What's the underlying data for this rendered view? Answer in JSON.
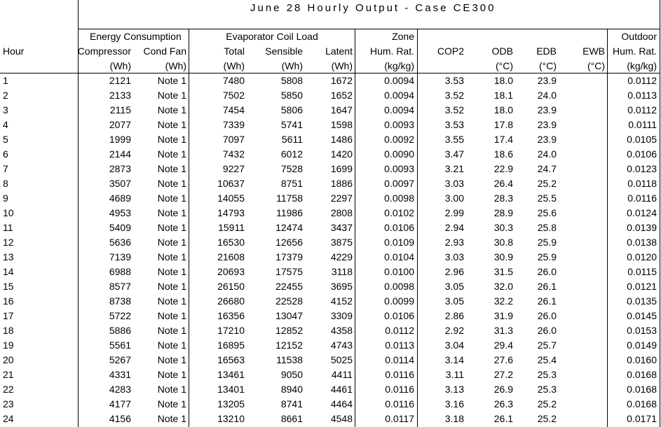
{
  "title": "June 28 Hourly Output - Case CE300",
  "group_headers": {
    "energy": "Energy Consumption",
    "evap": "Evaporator Coil Load",
    "zone": "Zone",
    "outdoor": "Outdoor"
  },
  "columns": [
    {
      "key": "hour",
      "name": "Hour",
      "unit": ""
    },
    {
      "key": "comp",
      "name": "Compressor",
      "unit": "(Wh)"
    },
    {
      "key": "fan",
      "name": "Cond Fan",
      "unit": "(Wh)"
    },
    {
      "key": "total",
      "name": "Total",
      "unit": "(Wh)"
    },
    {
      "key": "sens",
      "name": "Sensible",
      "unit": "(Wh)"
    },
    {
      "key": "lat",
      "name": "Latent",
      "unit": "(Wh)"
    },
    {
      "key": "zhr",
      "name": "Hum. Rat.",
      "unit": "(kg/kg)"
    },
    {
      "key": "cop",
      "name": "COP2",
      "unit": ""
    },
    {
      "key": "odb",
      "name": "ODB",
      "unit": "(°C)"
    },
    {
      "key": "edb",
      "name": "EDB",
      "unit": "(°C)"
    },
    {
      "key": "ewb",
      "name": "EWB",
      "unit": "(°C)"
    },
    {
      "key": "ohr",
      "name": "Hum. Rat.",
      "unit": "(kg/kg)"
    }
  ],
  "rows": [
    [
      "1",
      "2121",
      "Note 1",
      "7480",
      "5808",
      "1672",
      "0.0094",
      "3.53",
      "18.0",
      "23.9",
      "",
      "0.0112"
    ],
    [
      "2",
      "2133",
      "Note 1",
      "7502",
      "5850",
      "1652",
      "0.0094",
      "3.52",
      "18.1",
      "24.0",
      "",
      "0.0113"
    ],
    [
      "3",
      "2115",
      "Note 1",
      "7454",
      "5806",
      "1647",
      "0.0094",
      "3.52",
      "18.0",
      "23.9",
      "",
      "0.0112"
    ],
    [
      "4",
      "2077",
      "Note 1",
      "7339",
      "5741",
      "1598",
      "0.0093",
      "3.53",
      "17.8",
      "23.9",
      "",
      "0.0111"
    ],
    [
      "5",
      "1999",
      "Note 1",
      "7097",
      "5611",
      "1486",
      "0.0092",
      "3.55",
      "17.4",
      "23.9",
      "",
      "0.0105"
    ],
    [
      "6",
      "2144",
      "Note 1",
      "7432",
      "6012",
      "1420",
      "0.0090",
      "3.47",
      "18.6",
      "24.0",
      "",
      "0.0106"
    ],
    [
      "7",
      "2873",
      "Note 1",
      "9227",
      "7528",
      "1699",
      "0.0093",
      "3.21",
      "22.9",
      "24.7",
      "",
      "0.0123"
    ],
    [
      "8",
      "3507",
      "Note 1",
      "10637",
      "8751",
      "1886",
      "0.0097",
      "3.03",
      "26.4",
      "25.2",
      "",
      "0.0118"
    ],
    [
      "9",
      "4689",
      "Note 1",
      "14055",
      "11758",
      "2297",
      "0.0098",
      "3.00",
      "28.3",
      "25.5",
      "",
      "0.0116"
    ],
    [
      "10",
      "4953",
      "Note 1",
      "14793",
      "11986",
      "2808",
      "0.0102",
      "2.99",
      "28.9",
      "25.6",
      "",
      "0.0124"
    ],
    [
      "11",
      "5409",
      "Note 1",
      "15911",
      "12474",
      "3437",
      "0.0106",
      "2.94",
      "30.3",
      "25.8",
      "",
      "0.0139"
    ],
    [
      "12",
      "5636",
      "Note 1",
      "16530",
      "12656",
      "3875",
      "0.0109",
      "2.93",
      "30.8",
      "25.9",
      "",
      "0.0138"
    ],
    [
      "13",
      "7139",
      "Note 1",
      "21608",
      "17379",
      "4229",
      "0.0104",
      "3.03",
      "30.9",
      "25.9",
      "",
      "0.0120"
    ],
    [
      "14",
      "6988",
      "Note 1",
      "20693",
      "17575",
      "3118",
      "0.0100",
      "2.96",
      "31.5",
      "26.0",
      "",
      "0.0115"
    ],
    [
      "15",
      "8577",
      "Note 1",
      "26150",
      "22455",
      "3695",
      "0.0098",
      "3.05",
      "32.0",
      "26.1",
      "",
      "0.0121"
    ],
    [
      "16",
      "8738",
      "Note 1",
      "26680",
      "22528",
      "4152",
      "0.0099",
      "3.05",
      "32.2",
      "26.1",
      "",
      "0.0135"
    ],
    [
      "17",
      "5722",
      "Note 1",
      "16356",
      "13047",
      "3309",
      "0.0106",
      "2.86",
      "31.9",
      "26.0",
      "",
      "0.0145"
    ],
    [
      "18",
      "5886",
      "Note 1",
      "17210",
      "12852",
      "4358",
      "0.0112",
      "2.92",
      "31.3",
      "26.0",
      "",
      "0.0153"
    ],
    [
      "19",
      "5561",
      "Note 1",
      "16895",
      "12152",
      "4743",
      "0.0113",
      "3.04",
      "29.4",
      "25.7",
      "",
      "0.0149"
    ],
    [
      "20",
      "5267",
      "Note 1",
      "16563",
      "11538",
      "5025",
      "0.0114",
      "3.14",
      "27.6",
      "25.4",
      "",
      "0.0160"
    ],
    [
      "21",
      "4331",
      "Note 1",
      "13461",
      "9050",
      "4411",
      "0.0116",
      "3.11",
      "27.2",
      "25.3",
      "",
      "0.0168"
    ],
    [
      "22",
      "4283",
      "Note 1",
      "13401",
      "8940",
      "4461",
      "0.0116",
      "3.13",
      "26.9",
      "25.3",
      "",
      "0.0168"
    ],
    [
      "23",
      "4177",
      "Note 1",
      "13205",
      "8741",
      "4464",
      "0.0116",
      "3.16",
      "26.3",
      "25.2",
      "",
      "0.0168"
    ],
    [
      "24",
      "4156",
      "Note 1",
      "13210",
      "8661",
      "4548",
      "0.0117",
      "3.18",
      "26.1",
      "25.2",
      "",
      "0.0171"
    ]
  ]
}
